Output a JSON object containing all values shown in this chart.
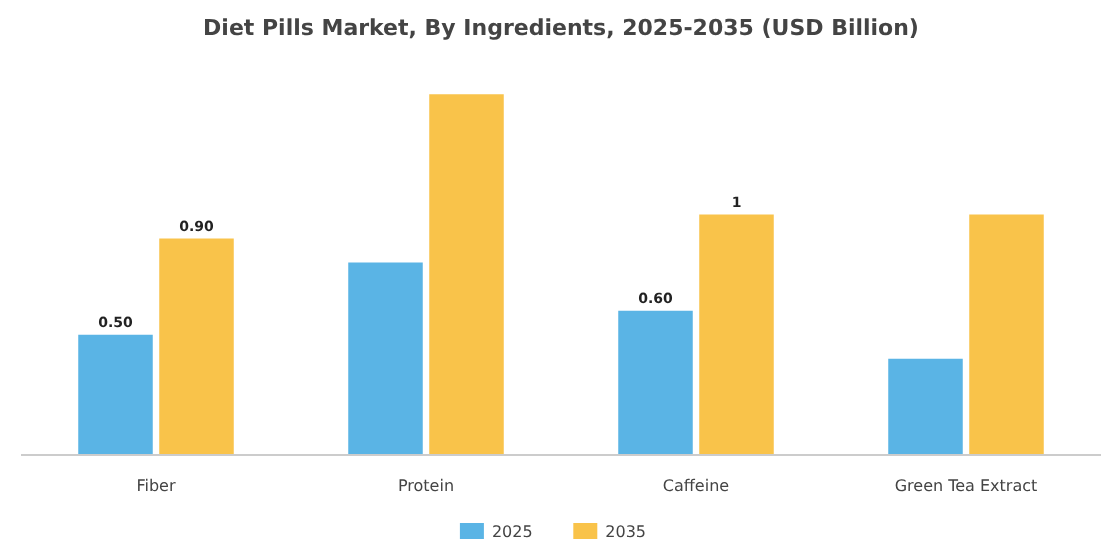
{
  "chart_data": {
    "type": "bar",
    "title": "Diet Pills Market, By Ingredients, 2025-2035 (USD Billion)",
    "categories": [
      "Fiber",
      "Protein",
      "Caffeine",
      "Green Tea Extract"
    ],
    "series": [
      {
        "name": "2025",
        "color": "#5ab4e5",
        "values": [
          0.5,
          0.8,
          0.6,
          0.4
        ],
        "value_labels": [
          "0.50",
          null,
          "0.60",
          null
        ]
      },
      {
        "name": "2035",
        "color": "#f9c34a",
        "values": [
          0.9,
          1.5,
          1,
          1.0
        ],
        "value_labels": [
          "0.90",
          null,
          "1",
          null
        ]
      }
    ],
    "legend": "bottom"
  }
}
